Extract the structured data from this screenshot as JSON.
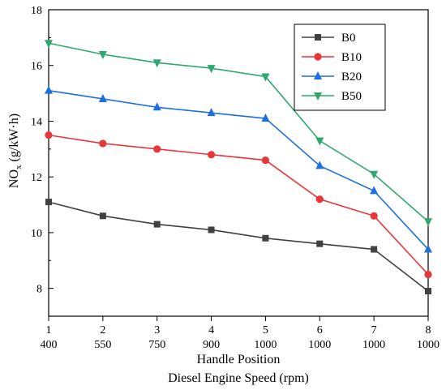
{
  "chart_data": {
    "type": "line",
    "title": "",
    "xlabel": "Handle Position",
    "xlabel2": "Diesel Engine Speed (rpm)",
    "ylabel": "NOx (g/kW·h)",
    "ylabel_parts": {
      "base": "NO",
      "sub": "x",
      "unit": " (g/kW·h)"
    },
    "x": [
      1,
      2,
      3,
      4,
      5,
      6,
      7,
      8
    ],
    "x_ticks_top": [
      "1",
      "2",
      "3",
      "4",
      "5",
      "6",
      "7",
      "8"
    ],
    "x_ticks_bottom": [
      "400",
      "550",
      "750",
      "900",
      "1000",
      "1000",
      "1000",
      "1000"
    ],
    "xlim": [
      1,
      8
    ],
    "ylim": [
      7,
      18
    ],
    "y_ticks": [
      8,
      10,
      12,
      14,
      16,
      18
    ],
    "grid": false,
    "legend_position": "top-right",
    "series": [
      {
        "name": "B0",
        "color": "#404040",
        "marker": "square",
        "values": [
          11.1,
          10.6,
          10.3,
          10.1,
          9.8,
          9.6,
          9.4,
          7.9
        ]
      },
      {
        "name": "B10",
        "color": "#e8373a",
        "marker": "circle",
        "values": [
          13.5,
          13.2,
          13.0,
          12.8,
          12.6,
          11.2,
          10.6,
          8.5
        ]
      },
      {
        "name": "B20",
        "color": "#1e6fe0",
        "marker": "triangle-up",
        "values": [
          15.1,
          14.8,
          14.5,
          14.3,
          14.1,
          12.4,
          11.5,
          9.4
        ]
      },
      {
        "name": "B50",
        "color": "#2ea86c",
        "marker": "triangle-down",
        "values": [
          16.8,
          16.4,
          16.1,
          15.9,
          15.6,
          13.3,
          12.1,
          10.4
        ]
      }
    ]
  }
}
